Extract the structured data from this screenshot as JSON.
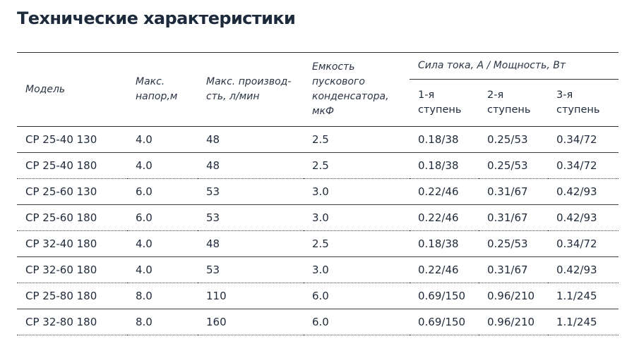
{
  "page": {
    "title": "Технические характеристики"
  },
  "table": {
    "headers": {
      "model": "Модель",
      "head_line1": "Макс.",
      "head_line2": "напор,м",
      "flow_line1": "Макс. производ-",
      "flow_line2": "сть, л/мин",
      "cap_line1": "Емкость",
      "cap_line2": "пускового",
      "cap_line3": "конденсатора,",
      "cap_line4": "мкФ",
      "current_group": "Сила тока, А / Мощность, Вт",
      "s1_line1": "1-я",
      "s1_line2": "ступень",
      "s2_line1": "2-я",
      "s2_line2": "ступень",
      "s3_line1": "3-я",
      "s3_line2": "ступень"
    },
    "rows": [
      [
        "CP 25-40 130",
        "4.0",
        "48",
        "2.5",
        "0.18/38",
        "0.25/53",
        "0.34/72"
      ],
      [
        "CP 25-40 180",
        "4.0",
        "48",
        "2.5",
        "0.18/38",
        "0.25/53",
        "0.34/72"
      ],
      [
        "CP 25-60 130",
        "6.0",
        "53",
        "3.0",
        "0.22/46",
        "0.31/67",
        "0.42/93"
      ],
      [
        "CP 25-60 180",
        "6.0",
        "53",
        "3.0",
        "0.22/46",
        "0.31/67",
        "0.42/93"
      ],
      [
        "CP 32-40 180",
        "4.0",
        "48",
        "2.5",
        "0.18/38",
        "0.25/53",
        "0.34/72"
      ],
      [
        "CP 32-60 180",
        "4.0",
        "53",
        "3.0",
        "0.22/46",
        "0.31/67",
        "0.42/93"
      ],
      [
        "CP 25-80 180",
        "8.0",
        "110",
        "6.0",
        "0.69/150",
        "0.96/210",
        "1.1/245"
      ],
      [
        "CP 32-80 180",
        "8.0",
        "160",
        "6.0",
        "0.69/150",
        "0.96/210",
        "1.1/245"
      ]
    ]
  }
}
